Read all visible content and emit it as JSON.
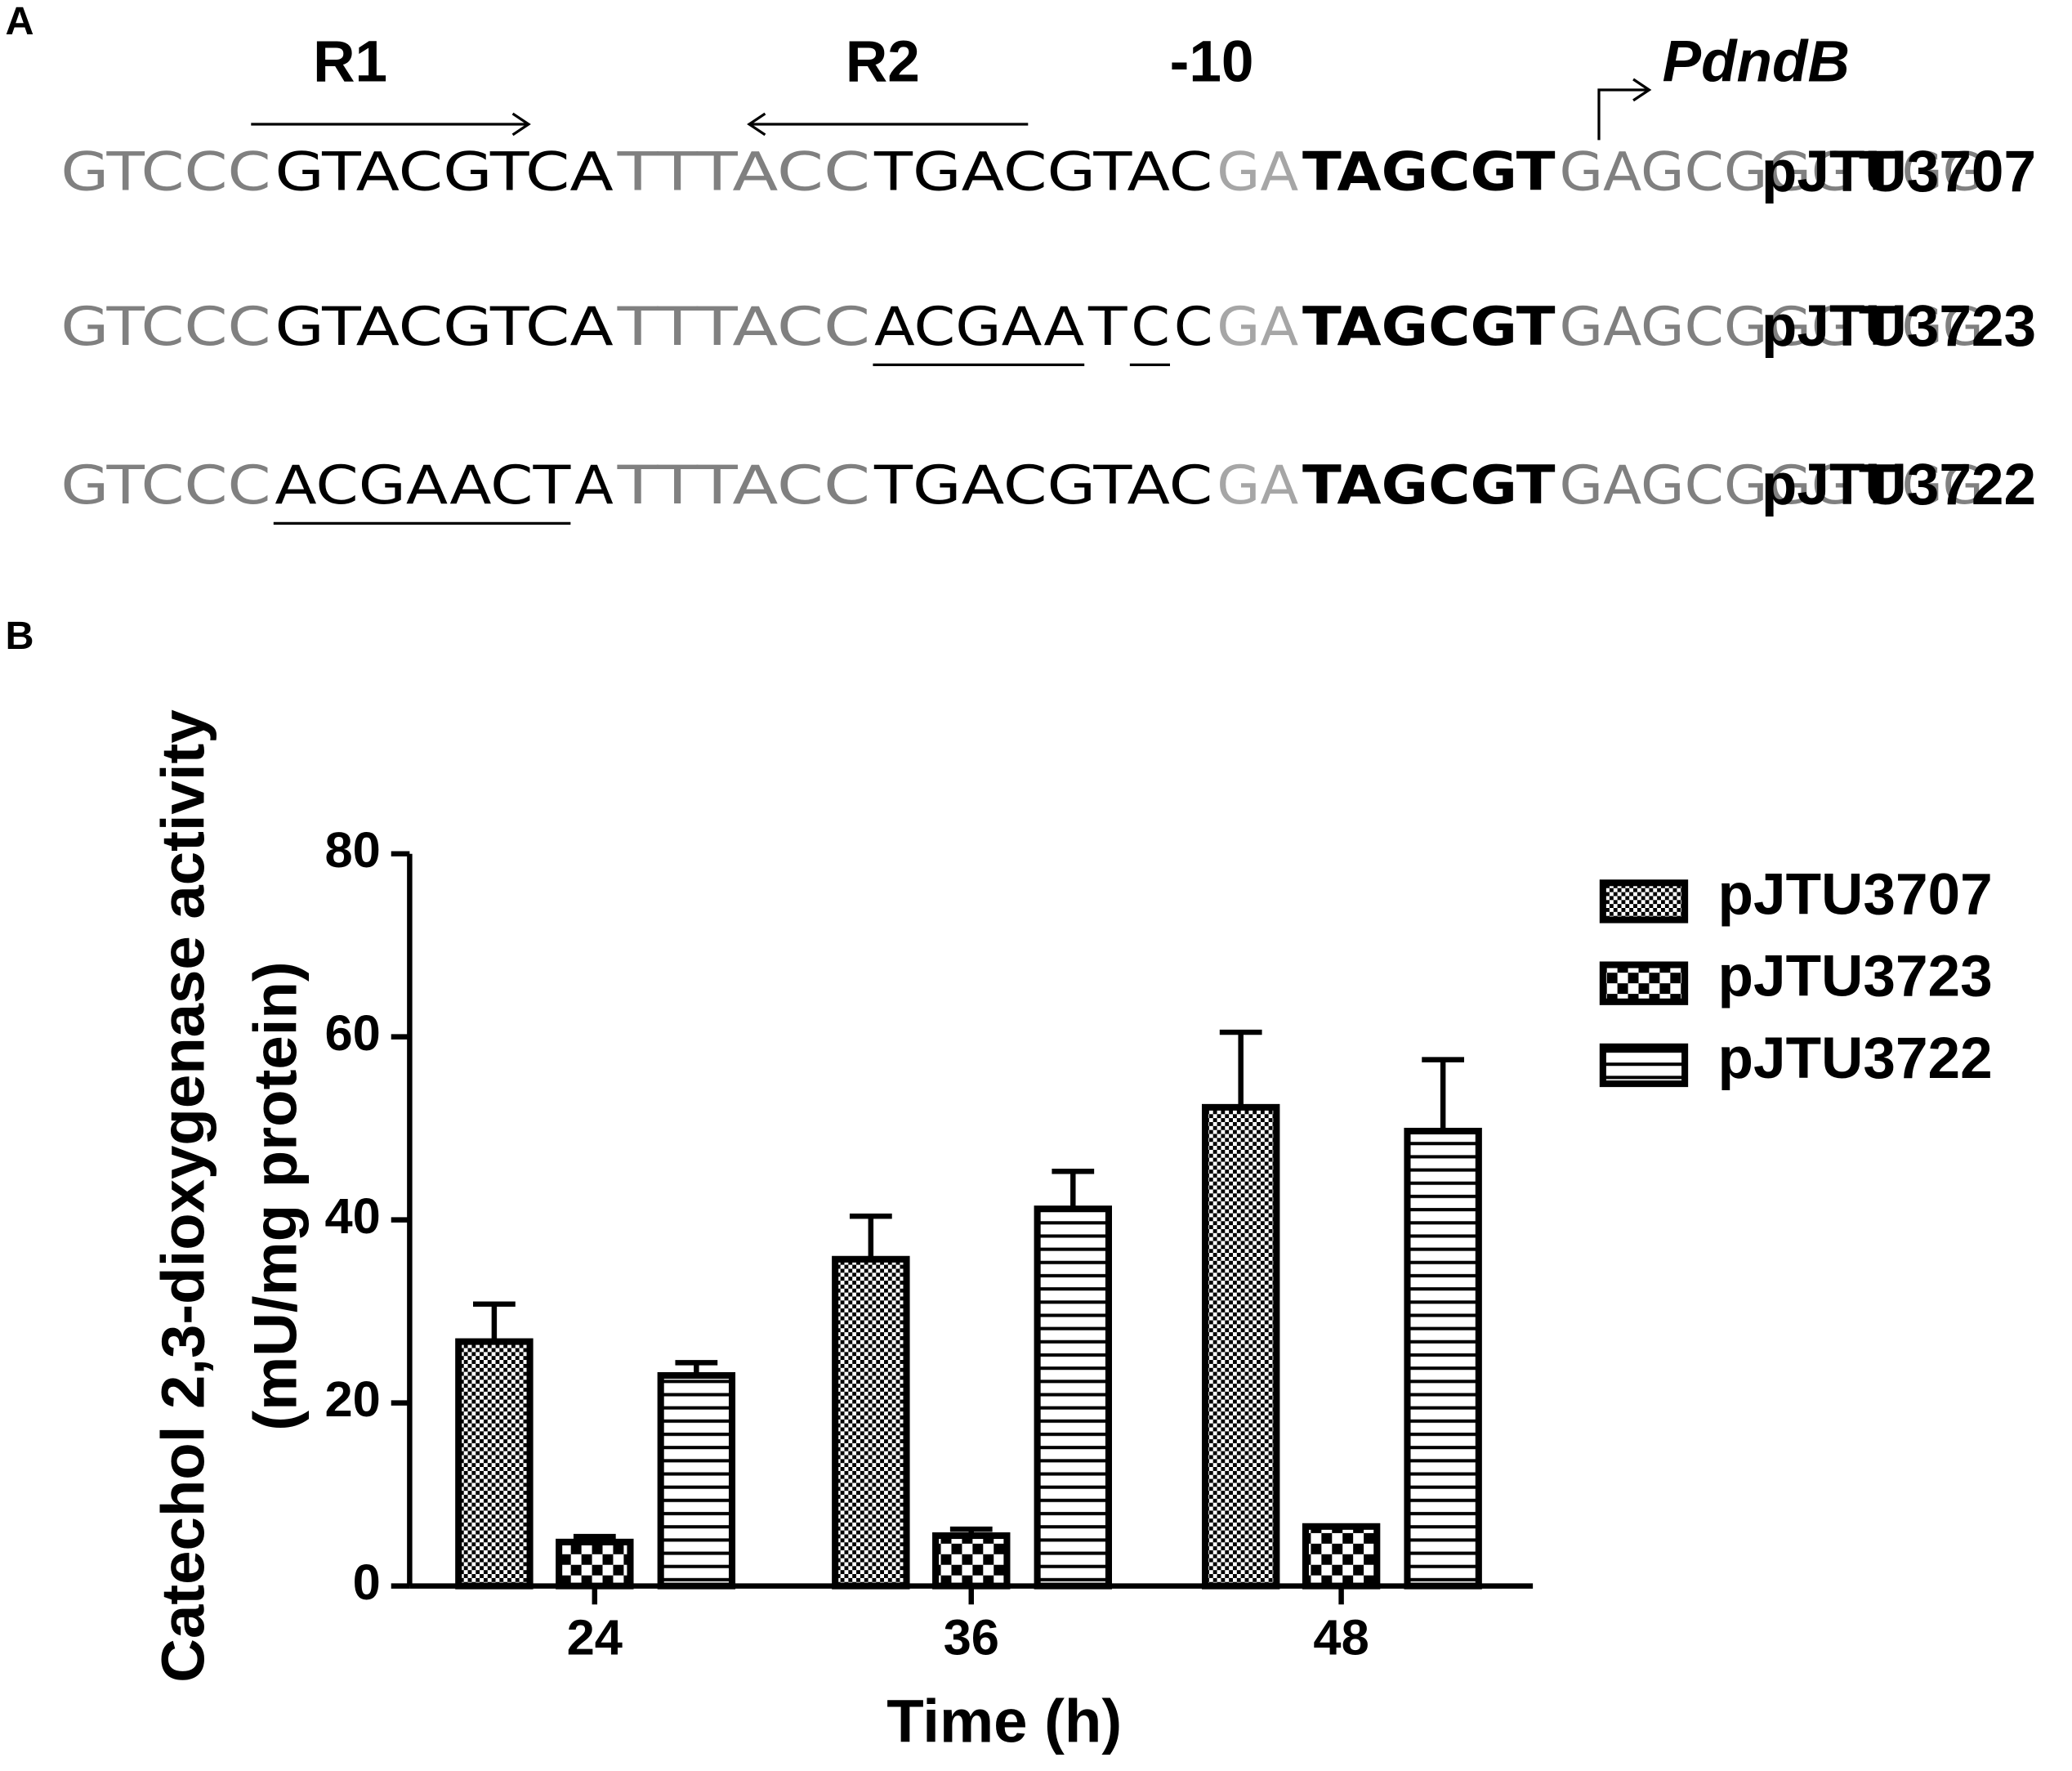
{
  "panel_a": {
    "label": "A",
    "annotations": [
      {
        "text": "R1",
        "italic": false
      },
      {
        "text": "R2",
        "italic": false
      },
      {
        "text": "-10",
        "italic": false
      },
      {
        "text": "PdndB",
        "italic": true
      }
    ],
    "rows": [
      {
        "name": "pJTU3707",
        "segments": [
          {
            "text": "GTCCC",
            "color": "#808080"
          },
          {
            "text": "GTACGTCA",
            "color": "#000000"
          },
          {
            "text": "TTTACC",
            "color": "#808080"
          },
          {
            "text": "TGACGTAC",
            "color": "#000000"
          },
          {
            "text": "GA",
            "color": "#a6a6a6"
          },
          {
            "text": "TAGCGT",
            "color": "#000000",
            "bold": true
          },
          {
            "text": "GAGCGGG",
            "color": "#808080"
          },
          {
            "text": "T",
            "color": "#000000",
            "bold": true
          },
          {
            "text": "GG",
            "color": "#808080"
          }
        ]
      },
      {
        "name": "pJTU3723",
        "segments": [
          {
            "text": "GTCCC",
            "color": "#808080"
          },
          {
            "text": "GTACGTCA",
            "color": "#000000"
          },
          {
            "text": "TTTACC",
            "color": "#808080"
          },
          {
            "text": "ACGAA",
            "color": "#000000",
            "underline": true
          },
          {
            "text": "T",
            "color": "#000000"
          },
          {
            "text": "C",
            "color": "#000000",
            "underline": true
          },
          {
            "text": "C",
            "color": "#000000"
          },
          {
            "text": "GA",
            "color": "#a6a6a6"
          },
          {
            "text": "TAGCGT",
            "color": "#000000",
            "bold": true
          },
          {
            "text": "GAGCGGG",
            "color": "#808080"
          },
          {
            "text": "T",
            "color": "#000000",
            "bold": true
          },
          {
            "text": "GG",
            "color": "#808080"
          }
        ]
      },
      {
        "name": "pJTU3722",
        "segments": [
          {
            "text": "GTCCC",
            "color": "#808080"
          },
          {
            "text": "ACGAACT",
            "color": "#000000",
            "underline": true
          },
          {
            "text": "A",
            "color": "#000000"
          },
          {
            "text": "TTTACC",
            "color": "#808080"
          },
          {
            "text": "TGACGTAC",
            "color": "#000000"
          },
          {
            "text": "GA",
            "color": "#a6a6a6"
          },
          {
            "text": "TAGCGT",
            "color": "#000000",
            "bold": true
          },
          {
            "text": "GAGCGGG",
            "color": "#808080"
          },
          {
            "text": "T",
            "color": "#000000",
            "bold": true
          },
          {
            "text": "GG",
            "color": "#808080"
          }
        ]
      }
    ]
  },
  "chart_data": {
    "type": "bar",
    "panel_label": "B",
    "xlabel": "Time (h)",
    "ylabel": [
      "Catechol 2,3-dioxygenase activity",
      "(mU/mg   protein)"
    ],
    "categories": [
      "24",
      "36",
      "48"
    ],
    "series": [
      {
        "name": "pJTU3707",
        "pattern": "dots",
        "values": [
          26.7,
          35.7,
          52.3
        ],
        "errors": [
          4.1,
          4.7,
          8.2
        ]
      },
      {
        "name": "pJTU3723",
        "pattern": "checker",
        "values": [
          4.8,
          5.5,
          6.5
        ],
        "errors": [
          0.6,
          0.7,
          0
        ]
      },
      {
        "name": "pJTU3722",
        "pattern": "horizontal-lines",
        "values": [
          23,
          41.2,
          49.7
        ],
        "errors": [
          1.4,
          4.1,
          7.8
        ]
      }
    ],
    "ylim": [
      0,
      80
    ],
    "yticks": [
      0,
      20,
      40,
      60,
      80
    ],
    "legend": "top-right-outside",
    "grid": false
  }
}
